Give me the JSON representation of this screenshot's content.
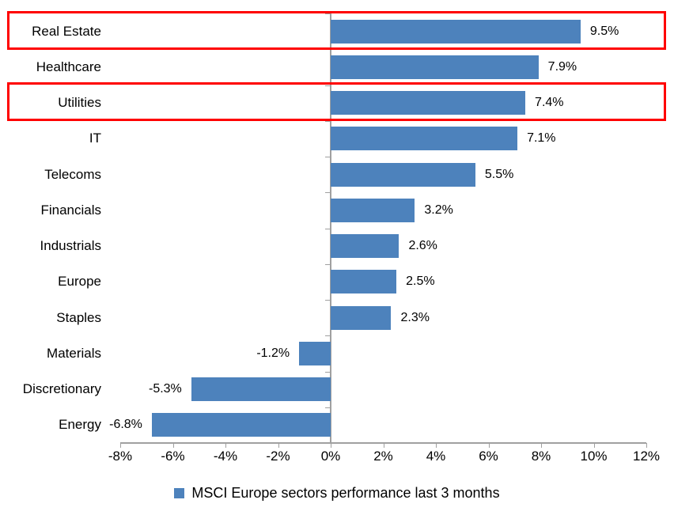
{
  "chart_data": {
    "type": "bar",
    "orientation": "horizontal",
    "categories": [
      "Real Estate",
      "Healthcare",
      "Utilities",
      "IT",
      "Telecoms",
      "Financials",
      "Industrials",
      "Europe",
      "Staples",
      "Materials",
      "Discretionary",
      "Energy"
    ],
    "values": [
      9.5,
      7.9,
      7.4,
      7.1,
      5.5,
      3.2,
      2.6,
      2.5,
      2.3,
      -1.2,
      -5.3,
      -6.8
    ],
    "value_labels": [
      "9.5%",
      "7.9%",
      "7.4%",
      "7.1%",
      "5.5%",
      "3.2%",
      "2.6%",
      "2.5%",
      "2.3%",
      "-1.2%",
      "-5.3%",
      "-6.8%"
    ],
    "highlighted_categories": [
      "Real Estate",
      "Utilities"
    ],
    "x_axis": {
      "min": -8,
      "max": 12,
      "tick_step": 2,
      "tick_labels": [
        "-8%",
        "-6%",
        "-4%",
        "-2%",
        "0%",
        "2%",
        "4%",
        "6%",
        "8%",
        "10%",
        "12%"
      ]
    },
    "grid": false,
    "legend_position": "bottom",
    "legend": "MSCI Europe sectors performance last 3 months",
    "colors": {
      "bar": "#4D82BC",
      "axis": "#A0A0A0",
      "highlight_box": "#FF0000",
      "text": "#000000"
    }
  },
  "legend": {
    "label": "MSCI Europe sectors performance last 3 months"
  }
}
